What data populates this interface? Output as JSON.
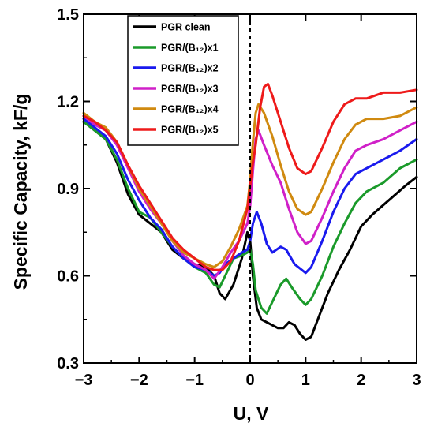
{
  "chart_data": {
    "type": "line",
    "xlabel": "U, V",
    "ylabel": "Specific Capacity, kF/g",
    "xlim": [
      -3,
      3
    ],
    "ylim": [
      0.3,
      1.5
    ],
    "xticks": [
      "−3",
      "−2",
      "−1",
      "0",
      "1",
      "2",
      "3"
    ],
    "xtick_values": [
      -3,
      -2,
      -1,
      0,
      1,
      2,
      3
    ],
    "yticks": [
      "0.3",
      "0.6",
      "0.9",
      "1.2",
      "1.5"
    ],
    "ytick_values": [
      0.3,
      0.6,
      0.9,
      1.2,
      1.5
    ],
    "grid": false,
    "legend_position": "top-inside-left",
    "reference_line": {
      "x": 0,
      "style": "dashed"
    },
    "series": [
      {
        "name": "PGR clean",
        "color": "#000000",
        "points": [
          [
            -3,
            1.13
          ],
          [
            -2.8,
            1.1
          ],
          [
            -2.6,
            1.07
          ],
          [
            -2.4,
            0.99
          ],
          [
            -2.2,
            0.88
          ],
          [
            -2.0,
            0.81
          ],
          [
            -1.8,
            0.78
          ],
          [
            -1.6,
            0.75
          ],
          [
            -1.4,
            0.69
          ],
          [
            -1.2,
            0.66
          ],
          [
            -1.0,
            0.64
          ],
          [
            -0.8,
            0.63
          ],
          [
            -0.65,
            0.6
          ],
          [
            -0.55,
            0.54
          ],
          [
            -0.45,
            0.52
          ],
          [
            -0.3,
            0.57
          ],
          [
            -0.15,
            0.66
          ],
          [
            -0.05,
            0.75
          ],
          [
            0.0,
            0.72
          ],
          [
            0.05,
            0.6
          ],
          [
            0.12,
            0.49
          ],
          [
            0.2,
            0.45
          ],
          [
            0.3,
            0.44
          ],
          [
            0.5,
            0.42
          ],
          [
            0.6,
            0.42
          ],
          [
            0.7,
            0.44
          ],
          [
            0.8,
            0.43
          ],
          [
            0.9,
            0.4
          ],
          [
            1.0,
            0.38
          ],
          [
            1.1,
            0.39
          ],
          [
            1.2,
            0.44
          ],
          [
            1.4,
            0.54
          ],
          [
            1.6,
            0.62
          ],
          [
            1.8,
            0.69
          ],
          [
            2.0,
            0.77
          ],
          [
            2.2,
            0.81
          ],
          [
            2.5,
            0.86
          ],
          [
            2.8,
            0.91
          ],
          [
            3.0,
            0.94
          ]
        ]
      },
      {
        "name": "PGR/(B₁₂)x1",
        "color": "#1a9a2a",
        "points": [
          [
            -3,
            1.13
          ],
          [
            -2.8,
            1.1
          ],
          [
            -2.6,
            1.07
          ],
          [
            -2.4,
            1.0
          ],
          [
            -2.2,
            0.9
          ],
          [
            -2.0,
            0.82
          ],
          [
            -1.8,
            0.8
          ],
          [
            -1.6,
            0.75
          ],
          [
            -1.4,
            0.7
          ],
          [
            -1.2,
            0.66
          ],
          [
            -1.0,
            0.63
          ],
          [
            -0.8,
            0.61
          ],
          [
            -0.65,
            0.57
          ],
          [
            -0.55,
            0.56
          ],
          [
            -0.45,
            0.6
          ],
          [
            -0.3,
            0.66
          ],
          [
            -0.15,
            0.67
          ],
          [
            -0.05,
            0.68
          ],
          [
            0.0,
            0.69
          ],
          [
            0.05,
            0.64
          ],
          [
            0.1,
            0.55
          ],
          [
            0.2,
            0.49
          ],
          [
            0.3,
            0.47
          ],
          [
            0.4,
            0.51
          ],
          [
            0.55,
            0.57
          ],
          [
            0.65,
            0.59
          ],
          [
            0.75,
            0.56
          ],
          [
            0.9,
            0.52
          ],
          [
            1.0,
            0.5
          ],
          [
            1.1,
            0.52
          ],
          [
            1.3,
            0.6
          ],
          [
            1.5,
            0.7
          ],
          [
            1.7,
            0.78
          ],
          [
            1.9,
            0.85
          ],
          [
            2.1,
            0.89
          ],
          [
            2.4,
            0.92
          ],
          [
            2.7,
            0.97
          ],
          [
            3.0,
            1.0
          ]
        ]
      },
      {
        "name": "PGR/(B₁₂)x2",
        "color": "#1a1aee",
        "points": [
          [
            -3,
            1.14
          ],
          [
            -2.8,
            1.11
          ],
          [
            -2.6,
            1.08
          ],
          [
            -2.4,
            1.02
          ],
          [
            -2.2,
            0.93
          ],
          [
            -2.0,
            0.86
          ],
          [
            -1.8,
            0.8
          ],
          [
            -1.6,
            0.76
          ],
          [
            -1.4,
            0.7
          ],
          [
            -1.2,
            0.66
          ],
          [
            -1.0,
            0.63
          ],
          [
            -0.8,
            0.62
          ],
          [
            -0.65,
            0.6
          ],
          [
            -0.55,
            0.61
          ],
          [
            -0.45,
            0.64
          ],
          [
            -0.3,
            0.66
          ],
          [
            -0.15,
            0.68
          ],
          [
            -0.05,
            0.69
          ],
          [
            0.0,
            0.72
          ],
          [
            0.05,
            0.78
          ],
          [
            0.12,
            0.82
          ],
          [
            0.2,
            0.78
          ],
          [
            0.3,
            0.71
          ],
          [
            0.4,
            0.68
          ],
          [
            0.55,
            0.7
          ],
          [
            0.65,
            0.69
          ],
          [
            0.8,
            0.64
          ],
          [
            1.0,
            0.61
          ],
          [
            1.1,
            0.63
          ],
          [
            1.3,
            0.72
          ],
          [
            1.5,
            0.82
          ],
          [
            1.7,
            0.9
          ],
          [
            1.9,
            0.95
          ],
          [
            2.1,
            0.97
          ],
          [
            2.4,
            1.0
          ],
          [
            2.7,
            1.03
          ],
          [
            3.0,
            1.07
          ]
        ]
      },
      {
        "name": "PGR/(B₁₂)x3",
        "color": "#d020c8",
        "points": [
          [
            -3,
            1.15
          ],
          [
            -2.8,
            1.12
          ],
          [
            -2.6,
            1.1
          ],
          [
            -2.4,
            1.05
          ],
          [
            -2.2,
            0.97
          ],
          [
            -2.0,
            0.89
          ],
          [
            -1.8,
            0.83
          ],
          [
            -1.6,
            0.78
          ],
          [
            -1.4,
            0.72
          ],
          [
            -1.2,
            0.67
          ],
          [
            -1.0,
            0.64
          ],
          [
            -0.8,
            0.62
          ],
          [
            -0.65,
            0.59
          ],
          [
            -0.5,
            0.63
          ],
          [
            -0.35,
            0.68
          ],
          [
            -0.2,
            0.72
          ],
          [
            -0.05,
            0.78
          ],
          [
            0.0,
            0.84
          ],
          [
            0.05,
            0.96
          ],
          [
            0.1,
            1.07
          ],
          [
            0.15,
            1.1
          ],
          [
            0.25,
            1.05
          ],
          [
            0.4,
            0.98
          ],
          [
            0.55,
            0.92
          ],
          [
            0.7,
            0.83
          ],
          [
            0.85,
            0.75
          ],
          [
            1.0,
            0.71
          ],
          [
            1.1,
            0.72
          ],
          [
            1.3,
            0.8
          ],
          [
            1.5,
            0.89
          ],
          [
            1.7,
            0.97
          ],
          [
            1.9,
            1.03
          ],
          [
            2.1,
            1.05
          ],
          [
            2.4,
            1.07
          ],
          [
            2.7,
            1.1
          ],
          [
            3.0,
            1.13
          ]
        ]
      },
      {
        "name": "PGR/(B₁₂)x4",
        "color": "#d08a10",
        "points": [
          [
            -3,
            1.16
          ],
          [
            -2.8,
            1.13
          ],
          [
            -2.6,
            1.11
          ],
          [
            -2.4,
            1.06
          ],
          [
            -2.2,
            0.98
          ],
          [
            -2.0,
            0.9
          ],
          [
            -1.8,
            0.84
          ],
          [
            -1.6,
            0.78
          ],
          [
            -1.4,
            0.72
          ],
          [
            -1.2,
            0.68
          ],
          [
            -1.0,
            0.66
          ],
          [
            -0.8,
            0.64
          ],
          [
            -0.65,
            0.63
          ],
          [
            -0.5,
            0.65
          ],
          [
            -0.35,
            0.7
          ],
          [
            -0.2,
            0.76
          ],
          [
            -0.05,
            0.84
          ],
          [
            0.0,
            0.93
          ],
          [
            0.05,
            1.06
          ],
          [
            0.1,
            1.16
          ],
          [
            0.15,
            1.19
          ],
          [
            0.25,
            1.16
          ],
          [
            0.4,
            1.08
          ],
          [
            0.55,
            0.98
          ],
          [
            0.7,
            0.89
          ],
          [
            0.85,
            0.83
          ],
          [
            1.0,
            0.81
          ],
          [
            1.1,
            0.82
          ],
          [
            1.3,
            0.9
          ],
          [
            1.5,
            0.99
          ],
          [
            1.7,
            1.07
          ],
          [
            1.9,
            1.12
          ],
          [
            2.1,
            1.14
          ],
          [
            2.4,
            1.14
          ],
          [
            2.7,
            1.15
          ],
          [
            3.0,
            1.18
          ]
        ]
      },
      {
        "name": "PGR/(B₁₂)x5",
        "color": "#ee1a1a",
        "points": [
          [
            -3,
            1.15
          ],
          [
            -2.8,
            1.13
          ],
          [
            -2.6,
            1.1
          ],
          [
            -2.4,
            1.06
          ],
          [
            -2.2,
            0.98
          ],
          [
            -2.0,
            0.91
          ],
          [
            -1.8,
            0.85
          ],
          [
            -1.6,
            0.79
          ],
          [
            -1.4,
            0.73
          ],
          [
            -1.2,
            0.69
          ],
          [
            -1.0,
            0.66
          ],
          [
            -0.8,
            0.63
          ],
          [
            -0.65,
            0.62
          ],
          [
            -0.5,
            0.62
          ],
          [
            -0.35,
            0.65
          ],
          [
            -0.2,
            0.72
          ],
          [
            -0.05,
            0.83
          ],
          [
            0.0,
            0.91
          ],
          [
            0.05,
            0.99
          ],
          [
            0.1,
            1.05
          ],
          [
            0.18,
            1.18
          ],
          [
            0.25,
            1.25
          ],
          [
            0.32,
            1.26
          ],
          [
            0.4,
            1.22
          ],
          [
            0.55,
            1.13
          ],
          [
            0.7,
            1.04
          ],
          [
            0.85,
            0.97
          ],
          [
            1.0,
            0.95
          ],
          [
            1.1,
            0.96
          ],
          [
            1.3,
            1.04
          ],
          [
            1.5,
            1.13
          ],
          [
            1.7,
            1.19
          ],
          [
            1.9,
            1.21
          ],
          [
            2.1,
            1.21
          ],
          [
            2.4,
            1.23
          ],
          [
            2.7,
            1.23
          ],
          [
            3.0,
            1.24
          ]
        ]
      }
    ]
  }
}
